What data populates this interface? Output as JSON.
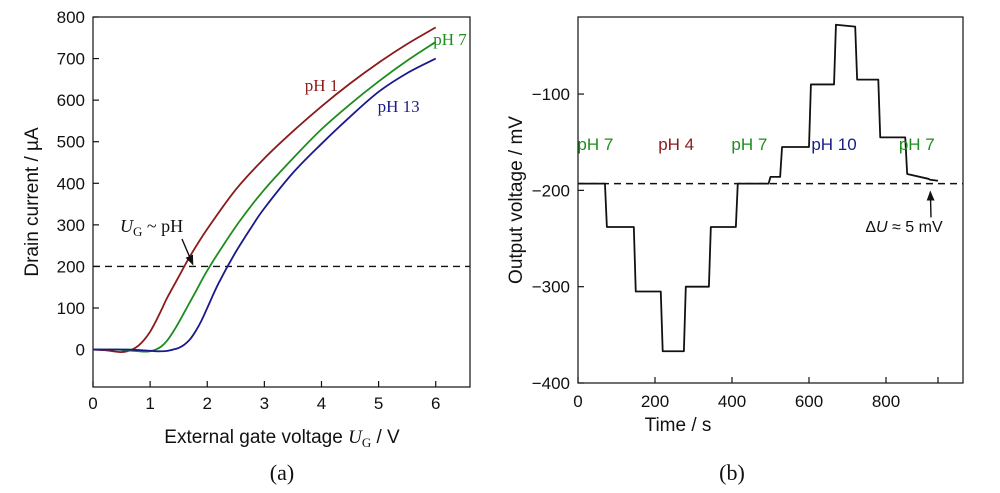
{
  "colors": {
    "ph1": "#8b1a1a",
    "ph7": "#1e8c1e",
    "ph13": "#1a1a8c",
    "ph4": "#8b1a1a",
    "ph10": "#1a1a8c",
    "axis": "#111111"
  },
  "chart_data": [
    {
      "type": "line",
      "panel_label": "(a)",
      "xlabel_prefix": "External gate voltage ",
      "xlabel_var": "U",
      "xlabel_sub": "G",
      "xlabel_unit": " / V",
      "ylabel": "Drain current / µA",
      "xlim": [
        0,
        6.6
      ],
      "ylim": [
        -90,
        800
      ],
      "xticks": [
        0,
        1,
        2,
        3,
        4,
        5,
        6
      ],
      "yticks": [
        0,
        100,
        200,
        300,
        400,
        500,
        600,
        700,
        800
      ],
      "reference_line": {
        "y": 200,
        "style": "dashed"
      },
      "annotation": {
        "var": "U",
        "sub": "G",
        "rest": " ~ pH",
        "arrow_to": [
          1.8,
          200
        ]
      },
      "series": [
        {
          "name": "pH 1",
          "color_key": "ph1",
          "x": [
            0,
            0.25,
            0.4,
            0.5,
            0.6,
            0.7,
            0.8,
            0.9,
            1.0,
            1.1,
            1.2,
            1.3,
            1.5,
            1.7,
            2.0,
            2.5,
            3.0,
            3.5,
            4.0,
            4.5,
            5.0,
            5.5,
            6.0
          ],
          "y": [
            0,
            -2,
            -5,
            -6,
            -4,
            1,
            10,
            24,
            43,
            68,
            96,
            125,
            175,
            225,
            290,
            385,
            460,
            525,
            585,
            640,
            690,
            735,
            775
          ]
        },
        {
          "name": "pH 7",
          "color_key": "ph7",
          "x": [
            0,
            0.4,
            0.6,
            0.8,
            0.9,
            1.0,
            1.1,
            1.2,
            1.3,
            1.4,
            1.5,
            1.6,
            1.8,
            2.0,
            2.3,
            2.6,
            3.0,
            3.5,
            4.0,
            4.5,
            5.0,
            5.5,
            6.0
          ],
          "y": [
            0,
            0,
            -2,
            -4,
            -5,
            -4,
            0,
            8,
            22,
            42,
            65,
            90,
            140,
            190,
            255,
            315,
            385,
            460,
            530,
            590,
            645,
            695,
            740
          ]
        },
        {
          "name": "pH 13",
          "color_key": "ph13",
          "x": [
            0,
            0.6,
            1.0,
            1.1,
            1.2,
            1.3,
            1.4,
            1.5,
            1.6,
            1.7,
            1.8,
            1.9,
            2.0,
            2.2,
            2.5,
            2.8,
            3.0,
            3.5,
            4.0,
            4.5,
            5.0,
            5.5,
            6.0
          ],
          "y": [
            0,
            0,
            -3,
            -4,
            -4,
            -3,
            0,
            4,
            12,
            25,
            45,
            70,
            100,
            160,
            235,
            300,
            340,
            425,
            495,
            560,
            620,
            665,
            700
          ]
        }
      ]
    },
    {
      "type": "line",
      "panel_label": "(b)",
      "xlabel": "Time / s",
      "ylabel": "Output voltage / mV",
      "xlim": [
        0,
        1000
      ],
      "ylim": [
        -400,
        -20
      ],
      "xticks": [
        0,
        200,
        400,
        600,
        800
      ],
      "xticks_unlabeled": [
        1000
      ],
      "yticks": [
        -400,
        -300,
        -200,
        -100
      ],
      "reference_line": {
        "y": -193,
        "style": "dashed"
      },
      "annotation": {
        "prefix": "Δ",
        "var": "U",
        "rest": " ≈ 5 mV",
        "arrow_to": [
          910,
          -193
        ]
      },
      "segment_labels": [
        {
          "text": "pH 7",
          "x": 45,
          "color_key": "ph7"
        },
        {
          "text": "pH 4",
          "x": 255,
          "color_key": "ph4"
        },
        {
          "text": "pH 7",
          "x": 445,
          "color_key": "ph7"
        },
        {
          "text": "pH 10",
          "x": 665,
          "color_key": "ph10"
        },
        {
          "text": "pH 7",
          "x": 880,
          "color_key": "ph7"
        }
      ],
      "series": [
        {
          "name": "",
          "color_key": "axis",
          "x": [
            0,
            70,
            75,
            145,
            150,
            215,
            220,
            275,
            280,
            340,
            345,
            410,
            415,
            475,
            480,
            495,
            500,
            525,
            530,
            600,
            605,
            665,
            670,
            720,
            725,
            780,
            785,
            850,
            855,
            910,
            915,
            935
          ],
          "y": [
            -193,
            -193,
            -238,
            -238,
            -305,
            -305,
            -367,
            -367,
            -300,
            -300,
            -238,
            -238,
            -193,
            -193,
            -193,
            -193,
            -186,
            -186,
            -155,
            -155,
            -90,
            -90,
            -28,
            -30,
            -85,
            -85,
            -145,
            -145,
            -183,
            -188,
            -189,
            -190
          ]
        }
      ]
    }
  ]
}
